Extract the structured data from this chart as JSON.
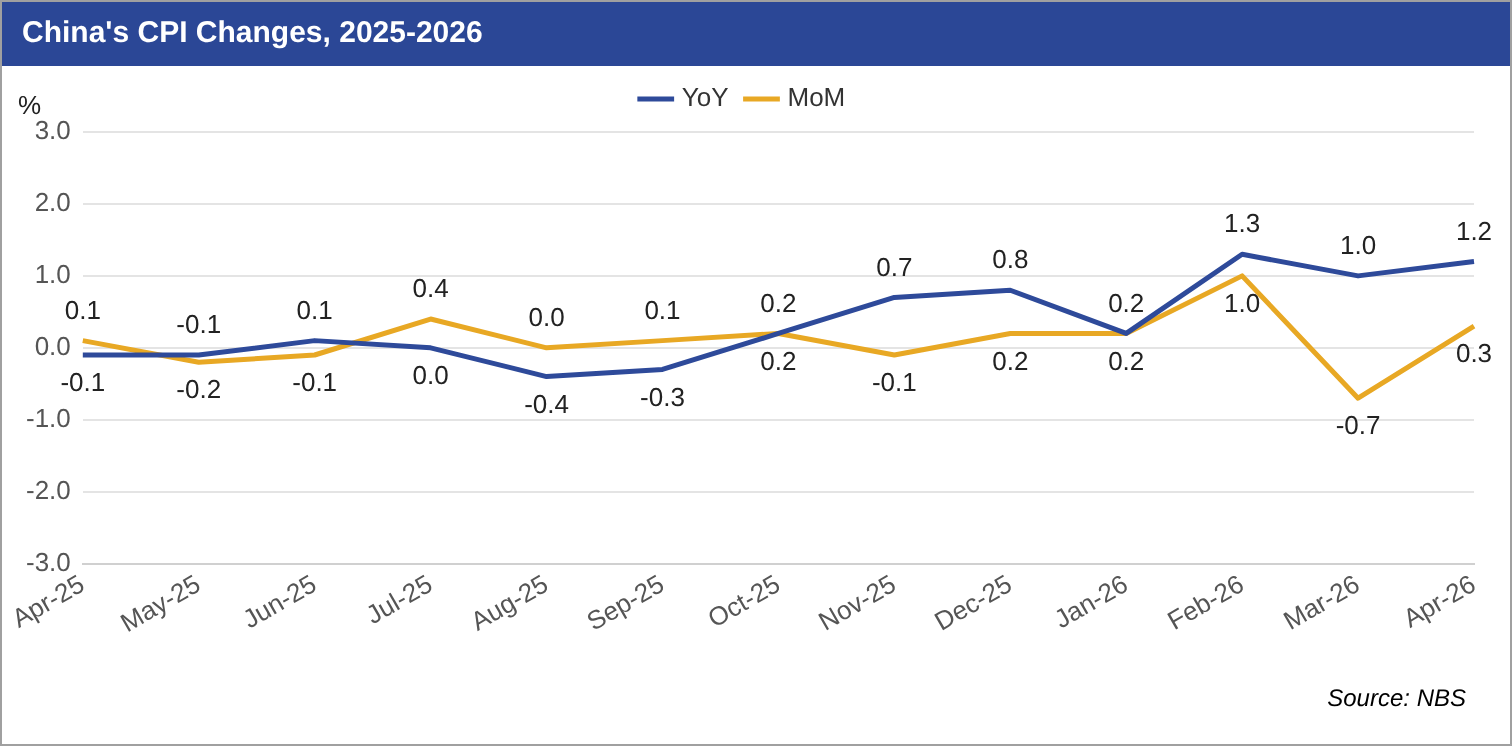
{
  "chart_data": {
    "type": "line",
    "title": "China's CPI Changes, 2025-2026",
    "ylabel": "%",
    "categories": [
      "Apr-25",
      "May-25",
      "Jun-25",
      "Jul-25",
      "Aug-25",
      "Sep-25",
      "Oct-25",
      "Nov-25",
      "Dec-25",
      "Jan-26",
      "Feb-26",
      "Mar-26",
      "Apr-26"
    ],
    "series": [
      {
        "name": "YoY",
        "color": "#2e4a9a",
        "values": [
          -0.1,
          -0.1,
          0.1,
          0.0,
          -0.4,
          -0.3,
          0.2,
          0.7,
          0.8,
          0.2,
          1.3,
          1.0,
          1.2
        ],
        "value_labels": [
          "-0.1",
          "-0.1",
          "0.1",
          "0.0",
          "-0.4",
          "-0.3",
          "0.2",
          "0.7",
          "0.8",
          "0.2",
          "1.3",
          "1.0",
          "1.2"
        ]
      },
      {
        "name": "MoM",
        "color": "#e8a824",
        "values": [
          0.1,
          -0.2,
          -0.1,
          0.4,
          0.0,
          0.1,
          0.2,
          -0.1,
          0.2,
          0.2,
          1.0,
          -0.7,
          0.3
        ],
        "value_labels": [
          "0.1",
          "-0.2",
          "-0.1",
          "0.4",
          "0.0",
          "0.1",
          "0.2",
          "-0.1",
          "0.2",
          "0.2",
          "1.0",
          "-0.7",
          "0.3"
        ]
      }
    ],
    "ylim": [
      -3,
      3
    ],
    "yticks": [
      {
        "value": -3,
        "label": "-3.0"
      },
      {
        "value": -2,
        "label": "-2.0"
      },
      {
        "value": -1,
        "label": "-1.0"
      },
      {
        "value": 0,
        "label": "0.0"
      },
      {
        "value": 1,
        "label": "1.0"
      },
      {
        "value": 2,
        "label": "2.0"
      },
      {
        "value": 3,
        "label": "3.0"
      }
    ],
    "grid": "y",
    "legend": "top",
    "marker": "none",
    "line_style": "solid",
    "annotations": [
      "Source: NBS"
    ]
  }
}
